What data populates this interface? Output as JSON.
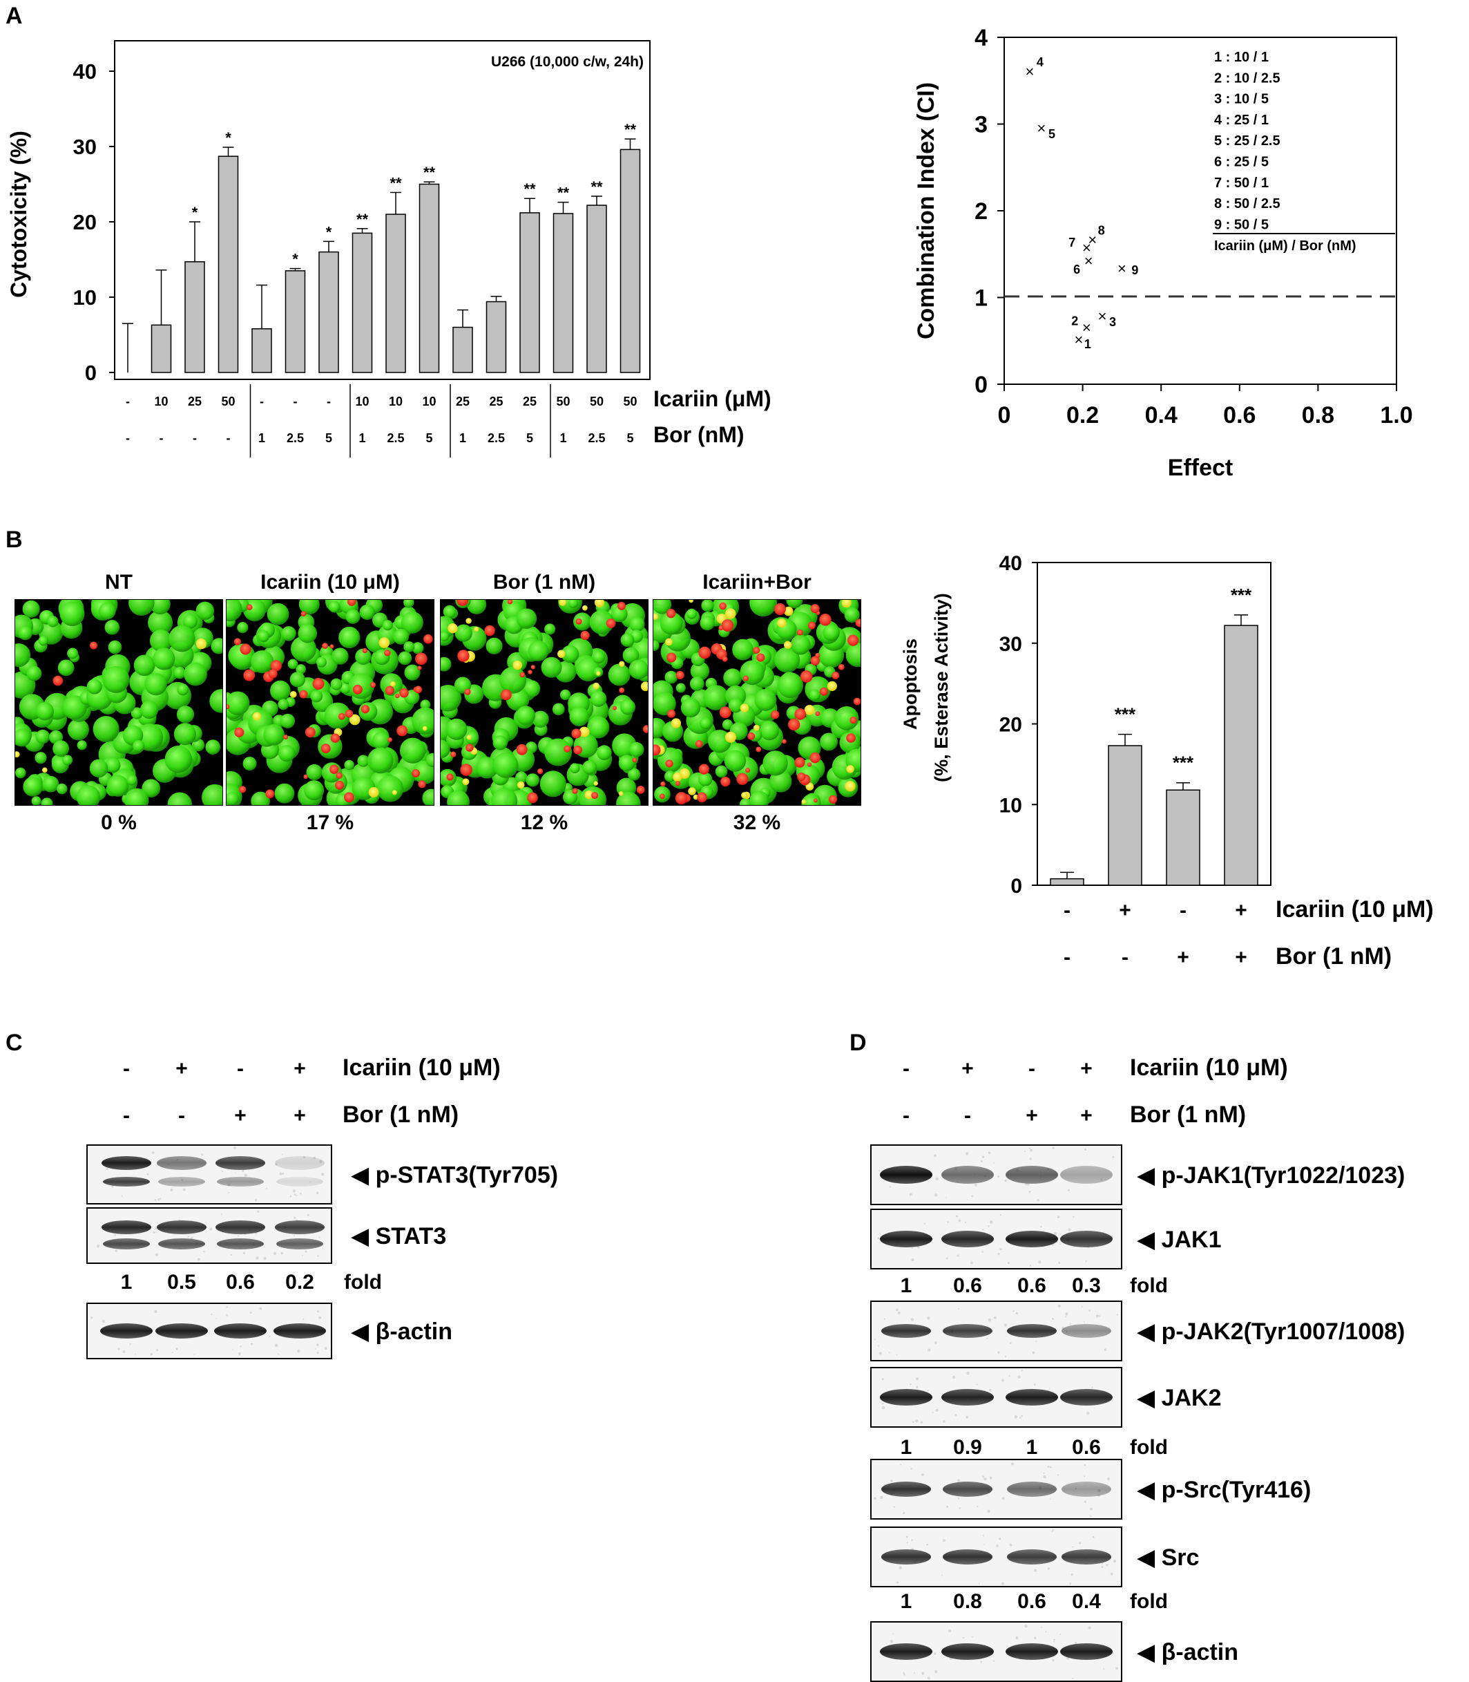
{
  "panels": {
    "A": {
      "letter": "A",
      "cytotoxicity": {
        "ylabel": "Cytotoxicity  (%)",
        "cell_info": "U266 (10,000 c/w, 24h)",
        "row_labels": [
          "Icariin (μM)",
          "Bor (nM)"
        ],
        "yticks": [
          "0",
          "10",
          "20",
          "30",
          "40"
        ]
      },
      "ci_plot": {
        "ylabel": "Combination Index (CI)",
        "xlabel": "Effect",
        "xticks": [
          "0",
          "0.2",
          "0.4",
          "0.6",
          "0.8",
          "1.0"
        ],
        "yticks": [
          "0",
          "1",
          "2",
          "3",
          "4"
        ],
        "legend_entries": [
          "1 : 10 / 1",
          "2 : 10 / 2.5",
          "3 : 10 / 5",
          "4 : 25 / 1",
          "5 : 25 / 2.5",
          "6 : 25 / 5",
          "7 : 50 / 1",
          "8 : 50 / 2.5",
          "9 : 50 / 5"
        ],
        "legend_caption": "Icariin  (μM) / Bor (nM)"
      }
    },
    "B": {
      "letter": "B",
      "images": [
        {
          "title": "NT",
          "percent": "0 %"
        },
        {
          "title": "Icariin (10 μM)",
          "percent": "17 %"
        },
        {
          "title": "Bor (1 nM)",
          "percent": "12 %"
        },
        {
          "title": "Icariin+Bor",
          "percent": "32 %"
        }
      ],
      "apoptosis": {
        "ylabel_line1": "Apoptosis",
        "ylabel_line2": "(%, Esterase Activity)",
        "yticks": [
          "0",
          "10",
          "20",
          "30",
          "40"
        ],
        "row_labels": [
          "Icariin (10 μM)",
          "Bor (1 nM)"
        ]
      }
    },
    "C": {
      "letter": "C",
      "treatment_labels": [
        "Icariin (10 μM)",
        "Bor (1 nM)"
      ],
      "icariin_signs": [
        "-",
        "+",
        "-",
        "+"
      ],
      "bor_signs": [
        "-",
        "-",
        "+",
        "+"
      ],
      "blots": [
        {
          "label": "◀ p-STAT3(Tyr705)"
        },
        {
          "label": "◀ STAT3"
        },
        {
          "label": "◀ β-actin"
        }
      ],
      "folds": [
        {
          "values": [
            "1",
            "0.5",
            "0.6",
            "0.2"
          ],
          "label": "fold"
        }
      ]
    },
    "D": {
      "letter": "D",
      "treatment_labels": [
        "Icariin (10 μM)",
        "Bor (1 nM)"
      ],
      "icariin_signs": [
        "-",
        "+",
        "-",
        "+"
      ],
      "bor_signs": [
        "-",
        "-",
        "+",
        "+"
      ],
      "blots": [
        {
          "label": "◀ p-JAK1(Tyr1022/1023)"
        },
        {
          "label": "◀ JAK1"
        },
        {
          "label": "◀ p-JAK2(Tyr1007/1008)"
        },
        {
          "label": "◀ JAK2"
        },
        {
          "label": "◀ p-Src(Tyr416)"
        },
        {
          "label": "◀ Src"
        },
        {
          "label": "◀ β-actin"
        }
      ],
      "folds": [
        {
          "values": [
            "1",
            "0.6",
            "0.6",
            "0.3"
          ],
          "label": "fold"
        },
        {
          "values": [
            "1",
            "0.9",
            "1",
            "0.6"
          ],
          "label": "fold"
        },
        {
          "values": [
            "1",
            "0.8",
            "0.6",
            "0.4"
          ],
          "label": "fold"
        }
      ]
    }
  },
  "chart_data": [
    {
      "type": "bar",
      "title": "U266 (10,000 c/w, 24h)",
      "xlabel": "",
      "ylabel": "Cytotoxicity  (%)",
      "ylim": [
        0,
        45
      ],
      "icariin": [
        "-",
        "10",
        "25",
        "50",
        "-",
        "-",
        "-",
        "10",
        "10",
        "10",
        "25",
        "25",
        "25",
        "50",
        "50",
        "50"
      ],
      "bor": [
        "-",
        "-",
        "-",
        "-",
        "1",
        "2.5",
        "5",
        "1",
        "2.5",
        "5",
        "1",
        "2.5",
        "5",
        "1",
        "2.5",
        "5"
      ],
      "values": [
        0,
        6.3,
        14.7,
        28.7,
        5.8,
        13.5,
        16.0,
        18.5,
        21.0,
        25.0,
        6.0,
        9.4,
        21.2,
        21.1,
        22.2,
        29.6
      ],
      "errors": [
        6.5,
        7.3,
        5.3,
        1.2,
        5.8,
        0.3,
        1.4,
        0.6,
        2.9,
        0.3,
        2.3,
        0.7,
        1.9,
        1.5,
        1.2,
        1.4
      ],
      "significance": [
        "",
        "",
        "*",
        "*",
        "",
        "*",
        "*",
        "**",
        "**",
        "**",
        "",
        "",
        "**",
        "**",
        "**",
        "**"
      ]
    },
    {
      "type": "scatter",
      "xlabel": "Effect",
      "ylabel": "Combination Index (CI)",
      "xlim": [
        0,
        1.0
      ],
      "ylim": [
        0,
        4
      ],
      "reference_line": 1,
      "points": [
        {
          "label": "1",
          "x": 0.19,
          "y": 0.51
        },
        {
          "label": "2",
          "x": 0.21,
          "y": 0.65
        },
        {
          "label": "3",
          "x": 0.25,
          "y": 0.78
        },
        {
          "label": "4",
          "x": 0.065,
          "y": 3.6
        },
        {
          "label": "5",
          "x": 0.095,
          "y": 2.95
        },
        {
          "label": "6",
          "x": 0.215,
          "y": 1.42
        },
        {
          "label": "7",
          "x": 0.21,
          "y": 1.57
        },
        {
          "label": "8",
          "x": 0.225,
          "y": 1.66
        },
        {
          "label": "9",
          "x": 0.3,
          "y": 1.33
        }
      ]
    },
    {
      "type": "bar",
      "xlabel": "",
      "ylabel": "Apoptosis (%, Esterase Activity)",
      "ylim": [
        0,
        40
      ],
      "icariin": [
        "-",
        "+",
        "-",
        "+"
      ],
      "bor": [
        "-",
        "-",
        "+",
        "+"
      ],
      "values": [
        0.8,
        17.3,
        11.8,
        32.2
      ],
      "errors": [
        0.8,
        1.4,
        0.9,
        1.3
      ],
      "significance": [
        "",
        "***",
        "***",
        "***"
      ]
    }
  ]
}
